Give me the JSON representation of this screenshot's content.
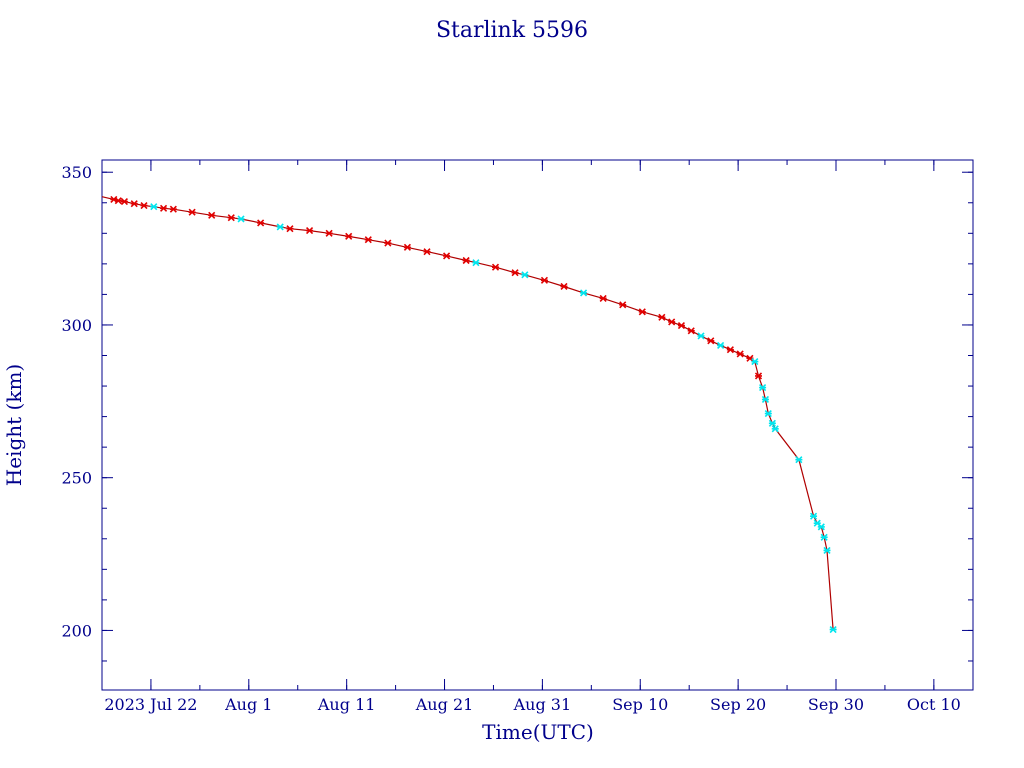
{
  "colors": {
    "axis": "#00008b",
    "text": "#00008b",
    "line": "#b00000",
    "marker_red": "#e00000",
    "marker_cyan": "#00e5ee",
    "background": "#ffffff"
  },
  "chart_data": {
    "type": "line",
    "title": "Starlink 5596",
    "xlabel": "Time(UTC)",
    "ylabel": "Height (km)",
    "x_unit": "days since 2023-07-17 00:00 UTC (chart origin at Jul 17)",
    "xlim_labels": [
      "Jul 17",
      "Oct 14"
    ],
    "ylim": [
      180.5,
      354
    ],
    "yticks": [
      200,
      250,
      300,
      350
    ],
    "xticks": [
      {
        "label": "2023 Jul 22",
        "date": "2023-07-22"
      },
      {
        "label": "Aug  1",
        "date": "2023-08-01"
      },
      {
        "label": "Aug 11",
        "date": "2023-08-11"
      },
      {
        "label": "Aug 21",
        "date": "2023-08-21"
      },
      {
        "label": "Aug 31",
        "date": "2023-08-31"
      },
      {
        "label": "Sep 10",
        "date": "2023-09-10"
      },
      {
        "label": "Sep 20",
        "date": "2023-09-20"
      },
      {
        "label": "Sep 30",
        "date": "2023-09-30"
      },
      {
        "label": "Oct 10",
        "date": "2023-10-10"
      }
    ],
    "grid": false,
    "series": [
      {
        "values": [
          {
            "date": "2023-07-17 00:00",
            "y": 342.0,
            "marker": "none"
          },
          {
            "date": "2023-07-18 05:00",
            "y": 341.1,
            "marker": "red"
          },
          {
            "date": "2023-07-18 16:00",
            "y": 340.7,
            "marker": "red"
          },
          {
            "date": "2023-07-19 07:00",
            "y": 340.4,
            "marker": "red"
          },
          {
            "date": "2023-07-20 07:00",
            "y": 339.7,
            "marker": "red"
          },
          {
            "date": "2023-07-21 07:00",
            "y": 339.1,
            "marker": "red"
          },
          {
            "date": "2023-07-22 07:00",
            "y": 338.7,
            "marker": "cyan"
          },
          {
            "date": "2023-07-23 07:00",
            "y": 338.2,
            "marker": "red"
          },
          {
            "date": "2023-07-24 07:00",
            "y": 337.9,
            "marker": "red"
          },
          {
            "date": "2023-07-26 05:00",
            "y": 336.9,
            "marker": "red"
          },
          {
            "date": "2023-07-28 05:00",
            "y": 335.9,
            "marker": "red"
          },
          {
            "date": "2023-07-30 05:00",
            "y": 335.1,
            "marker": "red"
          },
          {
            "date": "2023-07-31 05:00",
            "y": 334.7,
            "marker": "cyan"
          },
          {
            "date": "2023-08-02 05:00",
            "y": 333.4,
            "marker": "red"
          },
          {
            "date": "2023-08-04 05:00",
            "y": 332.1,
            "marker": "cyan"
          },
          {
            "date": "2023-08-05 05:00",
            "y": 331.5,
            "marker": "red"
          },
          {
            "date": "2023-08-07 05:00",
            "y": 330.9,
            "marker": "red"
          },
          {
            "date": "2023-08-09 05:00",
            "y": 330.0,
            "marker": "red"
          },
          {
            "date": "2023-08-11 05:00",
            "y": 329.0,
            "marker": "red"
          },
          {
            "date": "2023-08-13 05:00",
            "y": 327.9,
            "marker": "red"
          },
          {
            "date": "2023-08-15 05:00",
            "y": 326.8,
            "marker": "red"
          },
          {
            "date": "2023-08-17 05:00",
            "y": 325.4,
            "marker": "red"
          },
          {
            "date": "2023-08-19 05:00",
            "y": 324.0,
            "marker": "red"
          },
          {
            "date": "2023-08-21 05:00",
            "y": 322.6,
            "marker": "red"
          },
          {
            "date": "2023-08-23 05:00",
            "y": 321.1,
            "marker": "red"
          },
          {
            "date": "2023-08-24 05:00",
            "y": 320.4,
            "marker": "cyan"
          },
          {
            "date": "2023-08-26 05:00",
            "y": 318.9,
            "marker": "red"
          },
          {
            "date": "2023-08-28 05:00",
            "y": 317.1,
            "marker": "red"
          },
          {
            "date": "2023-08-29 05:00",
            "y": 316.4,
            "marker": "cyan"
          },
          {
            "date": "2023-08-31 05:00",
            "y": 314.6,
            "marker": "red"
          },
          {
            "date": "2023-09-02 05:00",
            "y": 312.6,
            "marker": "red"
          },
          {
            "date": "2023-09-04 05:00",
            "y": 310.5,
            "marker": "cyan"
          },
          {
            "date": "2023-09-06 05:00",
            "y": 308.7,
            "marker": "red"
          },
          {
            "date": "2023-09-08 05:00",
            "y": 306.6,
            "marker": "red"
          },
          {
            "date": "2023-09-10 05:00",
            "y": 304.3,
            "marker": "red"
          },
          {
            "date": "2023-09-12 05:00",
            "y": 302.5,
            "marker": "red"
          },
          {
            "date": "2023-09-13 05:00",
            "y": 301.0,
            "marker": "red"
          },
          {
            "date": "2023-09-14 05:00",
            "y": 299.8,
            "marker": "red"
          },
          {
            "date": "2023-09-15 05:00",
            "y": 298.1,
            "marker": "red"
          },
          {
            "date": "2023-09-16 05:00",
            "y": 296.4,
            "marker": "cyan"
          },
          {
            "date": "2023-09-17 05:00",
            "y": 294.8,
            "marker": "red"
          },
          {
            "date": "2023-09-18 05:00",
            "y": 293.3,
            "marker": "cyan"
          },
          {
            "date": "2023-09-19 05:00",
            "y": 291.9,
            "marker": "red"
          },
          {
            "date": "2023-09-20 05:00",
            "y": 290.5,
            "marker": "red"
          },
          {
            "date": "2023-09-21 05:00",
            "y": 289.1,
            "marker": "red"
          },
          {
            "date": "2023-09-21 17:00",
            "y": 288.0,
            "marker": "cyan"
          },
          {
            "date": "2023-09-22 02:00",
            "y": 283.3,
            "marker": "red"
          },
          {
            "date": "2023-09-22 12:00",
            "y": 279.5,
            "marker": "cyan"
          },
          {
            "date": "2023-09-22 19:00",
            "y": 275.6,
            "marker": "cyan"
          },
          {
            "date": "2023-09-23 02:00",
            "y": 271.0,
            "marker": "cyan"
          },
          {
            "date": "2023-09-23 12:00",
            "y": 267.8,
            "marker": "cyan"
          },
          {
            "date": "2023-09-23 19:00",
            "y": 266.0,
            "marker": "cyan"
          },
          {
            "date": "2023-09-26 05:00",
            "y": 255.9,
            "marker": "cyan"
          },
          {
            "date": "2023-09-27 17:00",
            "y": 237.4,
            "marker": "cyan"
          },
          {
            "date": "2023-09-28 02:00",
            "y": 235.1,
            "marker": "cyan"
          },
          {
            "date": "2023-09-28 12:00",
            "y": 233.9,
            "marker": "cyan"
          },
          {
            "date": "2023-09-28 19:00",
            "y": 230.5,
            "marker": "cyan"
          },
          {
            "date": "2023-09-29 02:00",
            "y": 226.2,
            "marker": "cyan"
          },
          {
            "date": "2023-09-29 17:00",
            "y": 200.3,
            "marker": "cyan"
          }
        ]
      }
    ]
  }
}
